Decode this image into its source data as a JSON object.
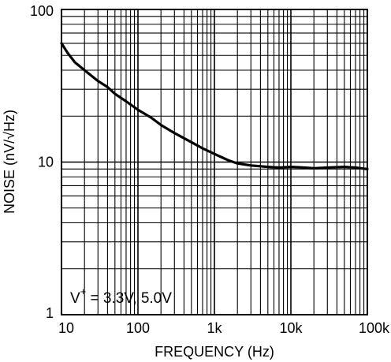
{
  "chart_data": {
    "type": "line",
    "title": "",
    "xlabel": "FREQUENCY (Hz)",
    "ylabel": "NOISE (nV/√Hz)",
    "x_scale": "log",
    "y_scale": "log",
    "xlim": [
      10,
      100000
    ],
    "ylim": [
      1,
      100
    ],
    "grid": true,
    "x_ticks": [
      10,
      100,
      1000,
      10000,
      100000
    ],
    "x_tick_labels": [
      "10",
      "100",
      "1k",
      "10k",
      "100k"
    ],
    "y_ticks": [
      1,
      10,
      100
    ],
    "y_tick_labels": [
      "1",
      "10",
      "100"
    ],
    "annotation": {
      "text": "V",
      "superscript": "+",
      "value": " = 3.3V, 5.0V"
    },
    "series": [
      {
        "color": "#000000",
        "x": [
          10,
          12,
          15,
          20,
          30,
          40,
          50,
          70,
          100,
          150,
          200,
          300,
          500,
          700,
          1000,
          1500,
          2000,
          3000,
          5000,
          7000,
          10000,
          15000,
          20000,
          30000,
          50000,
          70000,
          100000
        ],
        "y": [
          60,
          52,
          45,
          40,
          34,
          31,
          28,
          25,
          22,
          19.5,
          17.5,
          15.5,
          13.5,
          12.3,
          11.3,
          10.3,
          9.8,
          9.5,
          9.3,
          9.2,
          9.3,
          9.2,
          9.1,
          9.2,
          9.3,
          9.2,
          9.0
        ]
      }
    ]
  }
}
